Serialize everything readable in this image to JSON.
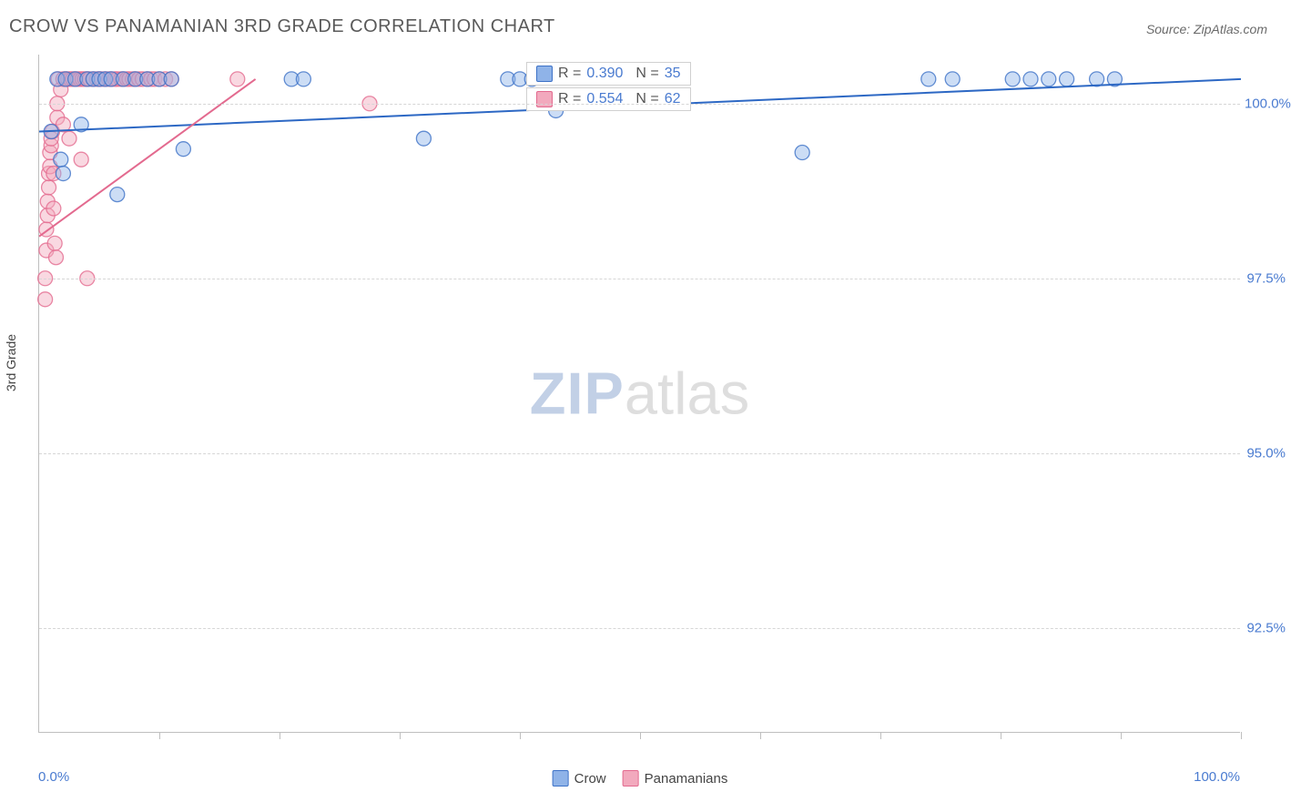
{
  "title": "CROW VS PANAMANIAN 3RD GRADE CORRELATION CHART",
  "source": "Source: ZipAtlas.com",
  "ylabel": "3rd Grade",
  "watermark_zip": "ZIP",
  "watermark_atlas": "atlas",
  "chart": {
    "type": "scatter",
    "xlim": [
      0,
      100
    ],
    "ylim": [
      91.0,
      100.7
    ],
    "x_axis_label_min": "0.0%",
    "x_axis_label_max": "100.0%",
    "y_grid": [
      {
        "value": 100.0,
        "label": "100.0%"
      },
      {
        "value": 97.5,
        "label": "97.5%"
      },
      {
        "value": 95.0,
        "label": "95.0%"
      },
      {
        "value": 92.5,
        "label": "92.5%"
      }
    ],
    "x_ticks_pct": [
      10,
      20,
      30,
      40,
      50,
      60,
      70,
      80,
      90,
      100
    ],
    "background_color": "#ffffff",
    "grid_color": "#d6d6d6",
    "marker_radius": 8,
    "marker_opacity": 0.45,
    "marker_stroke_width": 1.3,
    "line_width": 2.0,
    "series": [
      {
        "name": "Crow",
        "color_fill": "#8fb3e8",
        "color_stroke": "#3d72c7",
        "color_line": "#2d68c4",
        "R": "0.390",
        "N": "35",
        "trend": {
          "x1": 0,
          "y1": 99.6,
          "x2": 100,
          "y2": 100.35
        },
        "points": [
          [
            1.0,
            99.6
          ],
          [
            1.5,
            100.35
          ],
          [
            1.8,
            99.2
          ],
          [
            2.0,
            99.0
          ],
          [
            2.2,
            100.35
          ],
          [
            3.0,
            100.35
          ],
          [
            3.5,
            99.7
          ],
          [
            4.0,
            100.35
          ],
          [
            4.5,
            100.35
          ],
          [
            5.0,
            100.35
          ],
          [
            5.5,
            100.35
          ],
          [
            6.0,
            100.35
          ],
          [
            6.5,
            98.7
          ],
          [
            7.0,
            100.35
          ],
          [
            8.0,
            100.35
          ],
          [
            9.0,
            100.35
          ],
          [
            10.0,
            100.35
          ],
          [
            11.0,
            100.35
          ],
          [
            12.0,
            99.35
          ],
          [
            21.0,
            100.35
          ],
          [
            22.0,
            100.35
          ],
          [
            32.0,
            99.5
          ],
          [
            39.0,
            100.35
          ],
          [
            40.0,
            100.35
          ],
          [
            41.0,
            100.35
          ],
          [
            43.0,
            99.9
          ],
          [
            63.5,
            99.3
          ],
          [
            74.0,
            100.35
          ],
          [
            76.0,
            100.35
          ],
          [
            81.0,
            100.35
          ],
          [
            82.5,
            100.35
          ],
          [
            84.0,
            100.35
          ],
          [
            85.5,
            100.35
          ],
          [
            88.0,
            100.35
          ],
          [
            89.5,
            100.35
          ]
        ]
      },
      {
        "name": "Panamanians",
        "color_fill": "#f2a9bd",
        "color_stroke": "#e36a8f",
        "color_line": "#e36a8f",
        "R": "0.554",
        "N": "62",
        "trend": {
          "x1": 0,
          "y1": 98.1,
          "x2": 18,
          "y2": 100.35
        },
        "points": [
          [
            0.5,
            97.2
          ],
          [
            0.5,
            97.5
          ],
          [
            0.6,
            97.9
          ],
          [
            0.6,
            98.2
          ],
          [
            0.7,
            98.4
          ],
          [
            0.7,
            98.6
          ],
          [
            0.8,
            98.8
          ],
          [
            0.8,
            99.0
          ],
          [
            0.9,
            99.1
          ],
          [
            0.9,
            99.3
          ],
          [
            1.0,
            99.4
          ],
          [
            1.0,
            99.5
          ],
          [
            1.1,
            99.6
          ],
          [
            1.2,
            99.0
          ],
          [
            1.2,
            98.5
          ],
          [
            1.3,
            98.0
          ],
          [
            1.4,
            97.8
          ],
          [
            1.5,
            99.8
          ],
          [
            1.5,
            100.0
          ],
          [
            1.6,
            100.35
          ],
          [
            1.8,
            100.2
          ],
          [
            2.0,
            100.35
          ],
          [
            2.0,
            99.7
          ],
          [
            2.2,
            100.35
          ],
          [
            2.4,
            100.35
          ],
          [
            2.5,
            99.5
          ],
          [
            2.6,
            100.35
          ],
          [
            2.8,
            100.35
          ],
          [
            3.0,
            100.35
          ],
          [
            3.2,
            100.35
          ],
          [
            3.4,
            100.35
          ],
          [
            3.5,
            99.2
          ],
          [
            3.6,
            100.35
          ],
          [
            3.8,
            100.35
          ],
          [
            4.0,
            100.35
          ],
          [
            4.0,
            97.5
          ],
          [
            4.2,
            100.35
          ],
          [
            4.5,
            100.35
          ],
          [
            4.8,
            100.35
          ],
          [
            5.0,
            100.35
          ],
          [
            5.2,
            100.35
          ],
          [
            5.5,
            100.35
          ],
          [
            5.8,
            100.35
          ],
          [
            6.0,
            100.35
          ],
          [
            6.3,
            100.35
          ],
          [
            6.5,
            100.35
          ],
          [
            6.8,
            100.35
          ],
          [
            7.0,
            100.35
          ],
          [
            7.3,
            100.35
          ],
          [
            7.5,
            100.35
          ],
          [
            7.8,
            100.35
          ],
          [
            8.0,
            100.35
          ],
          [
            8.3,
            100.35
          ],
          [
            8.6,
            100.35
          ],
          [
            9.0,
            100.35
          ],
          [
            9.3,
            100.35
          ],
          [
            9.6,
            100.35
          ],
          [
            10.0,
            100.35
          ],
          [
            10.5,
            100.35
          ],
          [
            11.0,
            100.35
          ],
          [
            16.5,
            100.35
          ],
          [
            27.5,
            100.0
          ]
        ]
      }
    ],
    "legend_bottom": [
      {
        "label": "Crow",
        "fill": "#8fb3e8",
        "stroke": "#3d72c7"
      },
      {
        "label": "Panamanians",
        "fill": "#f2a9bd",
        "stroke": "#e36a8f"
      }
    ]
  }
}
